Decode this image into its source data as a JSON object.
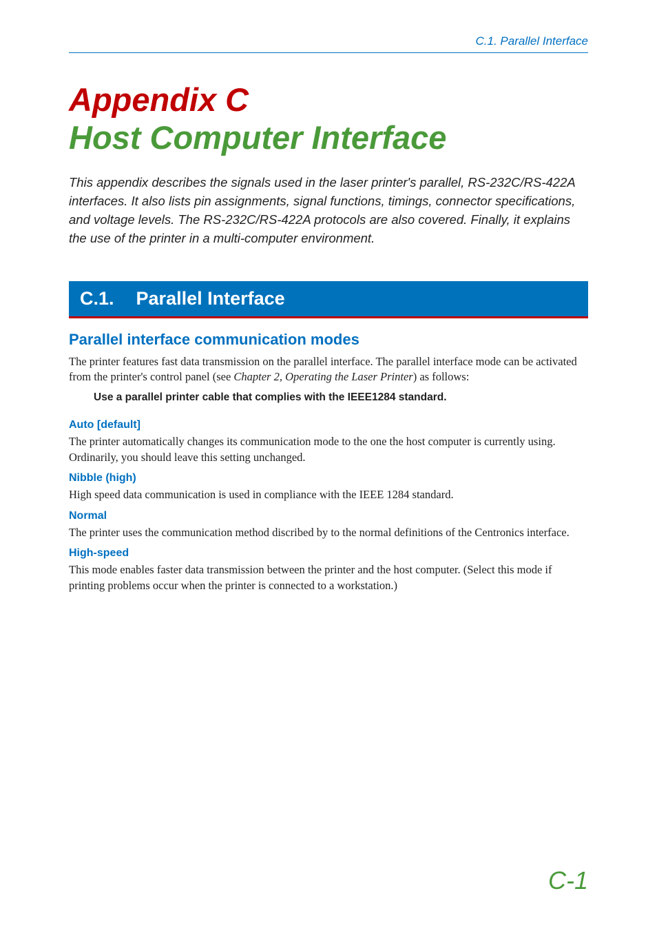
{
  "header": {
    "running_head": "C.1. Parallel Interface",
    "running_head_color": "#0070c0"
  },
  "title": {
    "line1": "Appendix C",
    "line1_color": "#c00000",
    "line2": "Host Computer Interface",
    "line2_color": "#4a9a3a"
  },
  "intro": "This appendix describes the signals used in the laser printer's parallel, RS-232C/RS-422A interfaces. It also lists pin assignments, signal functions, timings, connector specifications, and voltage levels. The RS-232C/RS-422A protocols are also covered. Finally, it explains the use of the printer in a multi-computer environment.",
  "section": {
    "number": "C.1.",
    "title": "Parallel Interface",
    "bar_bg": "#0072bc",
    "bar_underline": "#c00000"
  },
  "subsection": {
    "title": "Parallel interface communication modes",
    "body_prefix": "The printer features fast data transmission on the parallel interface. The parallel interface mode can be activated from the printer's control panel (see ",
    "body_ref": "Chapter 2, Operating the Laser Printer",
    "body_suffix": ") as follows:",
    "note": "Use a parallel printer cable that complies with the IEEE1284 standard."
  },
  "modes": [
    {
      "name": "Auto [default]",
      "desc": "The printer automatically changes its communication mode to the one the host computer is currently using. Ordinarily, you should leave this setting unchanged."
    },
    {
      "name": "Nibble (high)",
      "desc": "High speed data communication is used in compliance with the IEEE 1284 standard."
    },
    {
      "name": "Normal",
      "desc": "The printer uses the communication method discribed by to the normal definitions of the Centronics interface."
    },
    {
      "name": "High-speed",
      "desc": "This mode enables faster data transmission between the printer and the host computer. (Select this mode if printing problems occur when the printer is connected to a workstation.)"
    }
  ],
  "page_number": "C-1",
  "colors": {
    "link_blue": "#0070c0",
    "bar_blue": "#0072bc",
    "accent_red": "#c00000",
    "accent_green": "#4a9a3a",
    "body_text": "#222222",
    "background": "#ffffff"
  },
  "typography": {
    "title_fontsize": 47,
    "section_bar_fontsize": 27,
    "subsection_fontsize": 22,
    "body_fontsize": 16.5,
    "mode_head_fontsize": 16,
    "note_fontsize": 15.5,
    "running_head_fontsize": 17,
    "page_number_fontsize": 36
  }
}
